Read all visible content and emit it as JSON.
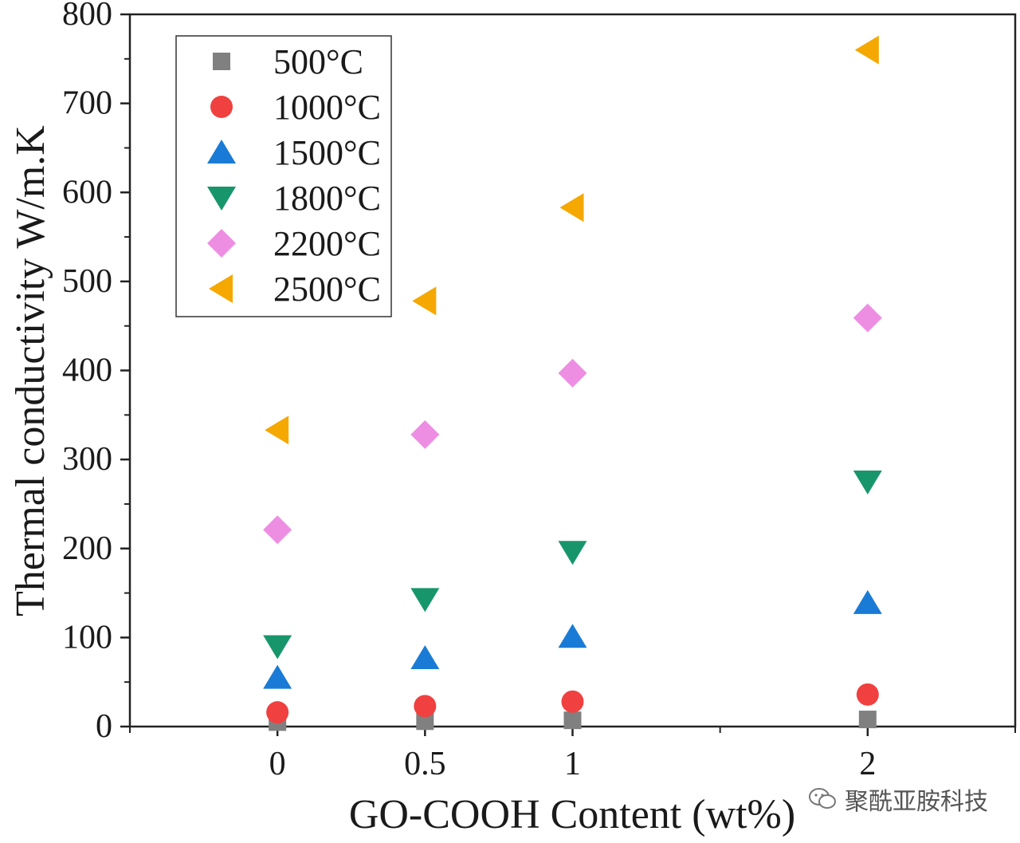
{
  "chart_data": {
    "type": "scatter",
    "title": "",
    "xlabel": "GO-COOH Content (wt%)",
    "ylabel": "Thermal conductivity W/m.K",
    "x_ticks": [
      0,
      0.5,
      1,
      2
    ],
    "x_tick_labels": [
      "0",
      "0.5",
      "1",
      "2"
    ],
    "y_ticks": [
      0,
      100,
      200,
      300,
      400,
      500,
      600,
      700,
      800
    ],
    "xlim": [
      -0.5,
      2.5
    ],
    "ylim": [
      0,
      800
    ],
    "legend_position": "top-left",
    "series": [
      {
        "name": "500°C",
        "marker": "square",
        "color": "#808080",
        "points": [
          [
            0,
            5
          ],
          [
            0.5,
            6
          ],
          [
            1,
            7
          ],
          [
            2,
            8
          ]
        ]
      },
      {
        "name": "1000°C",
        "marker": "circle",
        "color": "#f04040",
        "points": [
          [
            0,
            16
          ],
          [
            0.5,
            23
          ],
          [
            1,
            28
          ],
          [
            2,
            36
          ]
        ]
      },
      {
        "name": "1500°C",
        "marker": "triangle-up",
        "color": "#1a7bd6",
        "points": [
          [
            0,
            55
          ],
          [
            0.5,
            77
          ],
          [
            1,
            101
          ],
          [
            2,
            139
          ]
        ]
      },
      {
        "name": "1800°C",
        "marker": "triangle-down",
        "color": "#18966b",
        "points": [
          [
            0,
            90
          ],
          [
            0.5,
            143
          ],
          [
            1,
            196
          ],
          [
            2,
            275
          ]
        ]
      },
      {
        "name": "2200°C",
        "marker": "diamond",
        "color": "#ee8ee3",
        "points": [
          [
            0,
            221
          ],
          [
            0.5,
            328
          ],
          [
            1,
            397
          ],
          [
            2,
            459
          ]
        ]
      },
      {
        "name": "2500°C",
        "marker": "triangle-left",
        "color": "#f5a800",
        "points": [
          [
            0,
            333
          ],
          [
            0.5,
            478
          ],
          [
            1,
            583
          ],
          [
            2,
            760
          ]
        ]
      }
    ]
  },
  "watermark": {
    "text": "聚酰亚胺科技",
    "icon": "wechat-icon"
  }
}
